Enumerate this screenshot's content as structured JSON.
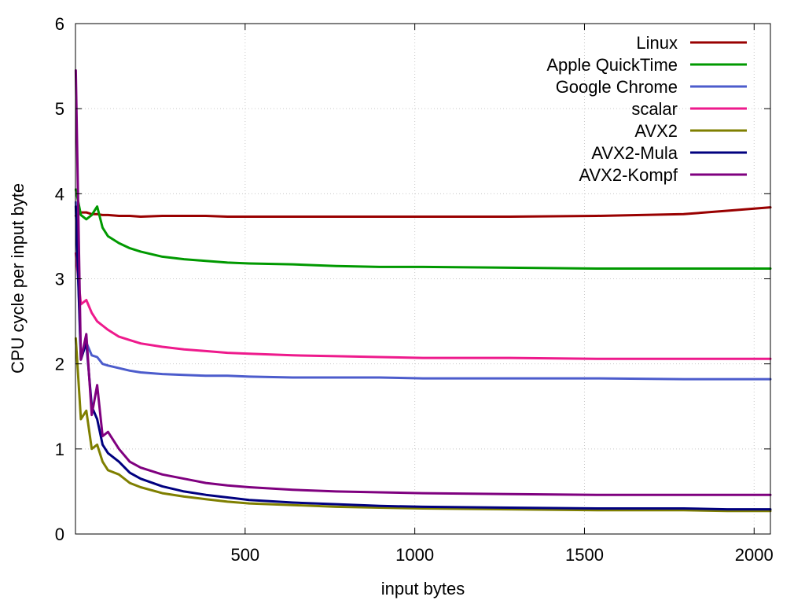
{
  "chart_data": {
    "type": "line",
    "title": "",
    "xlabel": "input bytes",
    "ylabel": "CPU cycle per input byte",
    "xlim": [
      0,
      2048
    ],
    "ylim": [
      0,
      6
    ],
    "x_ticks": [
      500,
      1000,
      1500,
      2000
    ],
    "y_ticks": [
      0,
      1,
      2,
      3,
      4,
      5,
      6
    ],
    "grid": true,
    "legend_position": "top-right",
    "x": [
      1,
      16,
      32,
      48,
      64,
      80,
      96,
      128,
      160,
      192,
      256,
      320,
      384,
      448,
      512,
      640,
      768,
      896,
      1024,
      1280,
      1536,
      1792,
      1920,
      2048
    ],
    "series": [
      {
        "name": "Linux",
        "color": "#990000",
        "values": [
          3.74,
          3.78,
          3.78,
          3.76,
          3.76,
          3.75,
          3.75,
          3.74,
          3.74,
          3.73,
          3.74,
          3.74,
          3.74,
          3.73,
          3.73,
          3.73,
          3.73,
          3.73,
          3.73,
          3.73,
          3.74,
          3.76,
          3.8,
          3.84
        ]
      },
      {
        "name": "Apple QuickTime",
        "color": "#009900",
        "values": [
          4.05,
          3.75,
          3.7,
          3.75,
          3.85,
          3.6,
          3.5,
          3.42,
          3.36,
          3.32,
          3.26,
          3.23,
          3.21,
          3.19,
          3.18,
          3.17,
          3.15,
          3.14,
          3.14,
          3.13,
          3.12,
          3.12,
          3.12,
          3.12
        ]
      },
      {
        "name": "Google Chrome",
        "color": "#4c5ccc",
        "values": [
          3.9,
          2.1,
          2.25,
          2.1,
          2.08,
          2.0,
          1.98,
          1.95,
          1.92,
          1.9,
          1.88,
          1.87,
          1.86,
          1.86,
          1.85,
          1.84,
          1.84,
          1.84,
          1.83,
          1.83,
          1.83,
          1.82,
          1.82,
          1.82
        ]
      },
      {
        "name": "scalar",
        "color": "#ee1a8c",
        "values": [
          3.3,
          2.7,
          2.75,
          2.6,
          2.5,
          2.45,
          2.4,
          2.32,
          2.28,
          2.24,
          2.2,
          2.17,
          2.15,
          2.13,
          2.12,
          2.1,
          2.09,
          2.08,
          2.07,
          2.07,
          2.06,
          2.06,
          2.06,
          2.06
        ]
      },
      {
        "name": "AVX2",
        "color": "#7f7f00",
        "values": [
          2.3,
          1.35,
          1.45,
          1.0,
          1.05,
          0.85,
          0.75,
          0.7,
          0.6,
          0.55,
          0.48,
          0.44,
          0.41,
          0.38,
          0.36,
          0.34,
          0.32,
          0.31,
          0.3,
          0.29,
          0.28,
          0.28,
          0.27,
          0.27
        ]
      },
      {
        "name": "AVX2-Mula",
        "color": "#00007f",
        "values": [
          3.85,
          2.05,
          2.25,
          1.5,
          1.35,
          1.05,
          0.95,
          0.85,
          0.72,
          0.65,
          0.56,
          0.5,
          0.46,
          0.43,
          0.4,
          0.37,
          0.35,
          0.33,
          0.32,
          0.31,
          0.3,
          0.3,
          0.29,
          0.29
        ]
      },
      {
        "name": "AVX2-Kompf",
        "color": "#7f007f",
        "values": [
          5.45,
          2.05,
          2.35,
          1.4,
          1.75,
          1.15,
          1.2,
          1.0,
          0.85,
          0.78,
          0.7,
          0.65,
          0.6,
          0.57,
          0.55,
          0.52,
          0.5,
          0.49,
          0.48,
          0.47,
          0.46,
          0.46,
          0.46,
          0.46
        ]
      }
    ]
  }
}
